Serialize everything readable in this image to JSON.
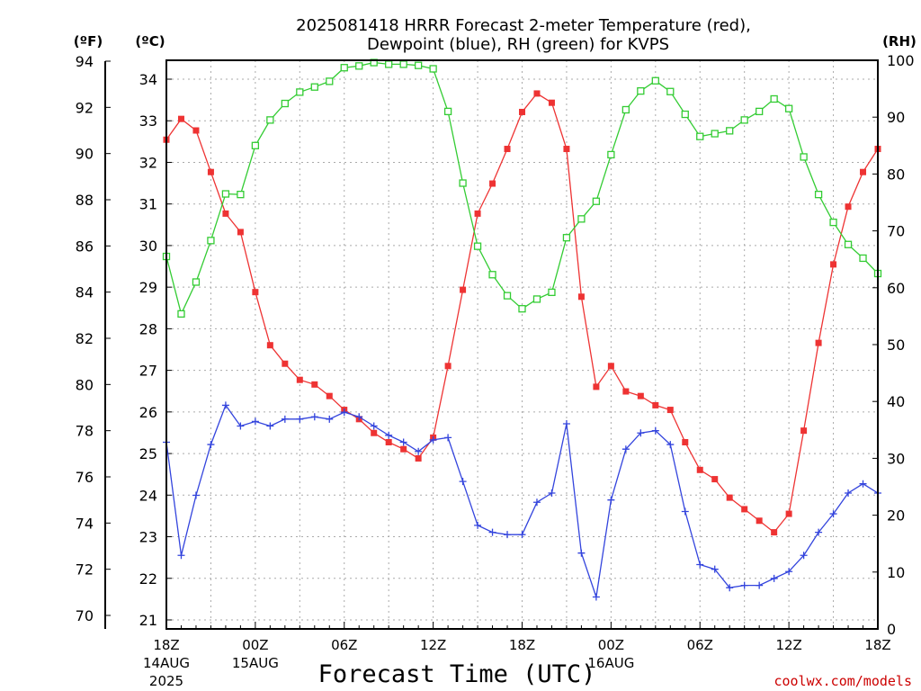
{
  "title": {
    "line1": "2025081418 HRRR Forecast 2-meter Temperature (red),",
    "line2": "Dewpoint (blue), RH (green) for KVPS"
  },
  "units": {
    "fahrenheit": "(ºF)",
    "celsius": "(ºC)",
    "rh": "(RH)"
  },
  "credit": "coolwx.com/models",
  "chart_data": {
    "type": "line",
    "xlabel": "Forecast Time (UTC)",
    "x_ticks": [
      {
        "hour": 0,
        "label": "18Z",
        "date": "14AUG",
        "year": "2025"
      },
      {
        "hour": 6,
        "label": "00Z",
        "date": "15AUG"
      },
      {
        "hour": 12,
        "label": "06Z"
      },
      {
        "hour": 18,
        "label": "12Z"
      },
      {
        "hour": 24,
        "label": "18Z"
      },
      {
        "hour": 30,
        "label": "00Z",
        "date": "16AUG"
      },
      {
        "hour": 36,
        "label": "06Z"
      },
      {
        "hour": 42,
        "label": "12Z"
      },
      {
        "hour": 48,
        "label": "18Z"
      }
    ],
    "xlim": [
      0,
      48
    ],
    "ylim_fahrenheit": [
      70,
      94
    ],
    "yticks_fahrenheit": [
      70,
      72,
      74,
      76,
      78,
      80,
      82,
      84,
      86,
      88,
      90,
      92,
      94
    ],
    "ylim_celsius": [
      21,
      34
    ],
    "yticks_celsius": [
      21,
      22,
      23,
      24,
      25,
      26,
      27,
      28,
      29,
      30,
      31,
      32,
      33,
      34
    ],
    "ylim_rh": [
      0,
      100
    ],
    "yticks_rh": [
      0,
      10,
      20,
      30,
      40,
      50,
      60,
      70,
      80,
      90,
      100
    ],
    "grid": true,
    "forecast_hours": [
      0,
      1,
      2,
      3,
      4,
      5,
      6,
      7,
      8,
      9,
      10,
      11,
      12,
      13,
      14,
      15,
      16,
      17,
      18,
      19,
      20,
      21,
      22,
      23,
      24,
      25,
      26,
      27,
      28,
      29,
      30,
      31,
      32,
      33,
      34,
      35,
      36,
      37,
      38,
      39,
      40,
      41,
      42,
      43,
      44,
      45,
      46,
      47,
      48
    ],
    "series": [
      {
        "key": "temperature",
        "axis": "fahrenheit",
        "color": "#ee3333",
        "marker": "filled-square",
        "values": [
          90.6,
          91.5,
          91.0,
          89.2,
          87.4,
          86.6,
          84.0,
          81.7,
          80.9,
          80.2,
          80.0,
          79.5,
          78.9,
          78.5,
          77.9,
          77.5,
          77.2,
          76.8,
          77.7,
          80.8,
          84.1,
          87.4,
          88.7,
          90.2,
          91.8,
          92.6,
          92.2,
          90.2,
          83.8,
          79.9,
          80.8,
          79.7,
          79.5,
          79.1,
          78.9,
          77.5,
          76.3,
          75.9,
          75.1,
          74.6,
          74.1,
          73.6,
          74.4,
          78.0,
          81.8,
          85.2,
          87.7,
          89.2,
          90.2
        ]
      },
      {
        "key": "dewpoint",
        "axis": "fahrenheit",
        "color": "#3344dd",
        "marker": "plus",
        "values": [
          77.5,
          72.6,
          75.2,
          77.4,
          79.1,
          78.2,
          78.4,
          78.2,
          78.5,
          78.5,
          78.6,
          78.5,
          78.8,
          78.6,
          78.2,
          77.8,
          77.5,
          77.1,
          77.6,
          77.7,
          75.8,
          73.9,
          73.6,
          73.5,
          73.5,
          74.9,
          75.3,
          78.3,
          72.7,
          70.8,
          75.0,
          77.2,
          77.9,
          78.0,
          77.4,
          74.5,
          72.2,
          72.0,
          71.2,
          71.3,
          71.3,
          71.6,
          71.9,
          72.6,
          73.6,
          74.4,
          75.3,
          75.7,
          75.3
        ]
      },
      {
        "key": "rh",
        "axis": "rh",
        "color": "#33cc33",
        "marker": "open-square",
        "values": [
          65.5,
          55.4,
          61.0,
          68.3,
          76.5,
          76.4,
          85.0,
          89.5,
          92.4,
          94.4,
          95.3,
          96.3,
          98.7,
          99.0,
          99.6,
          99.3,
          99.3,
          99.1,
          98.5,
          91.0,
          78.4,
          67.3,
          62.3,
          58.6,
          56.3,
          58.0,
          59.2,
          68.8,
          72.1,
          75.2,
          83.4,
          91.3,
          94.6,
          96.4,
          94.5,
          90.5,
          86.6,
          87.1,
          87.6,
          89.5,
          91.0,
          93.2,
          91.5,
          83.0,
          76.4,
          71.5,
          67.6,
          65.2,
          62.5
        ]
      }
    ]
  }
}
